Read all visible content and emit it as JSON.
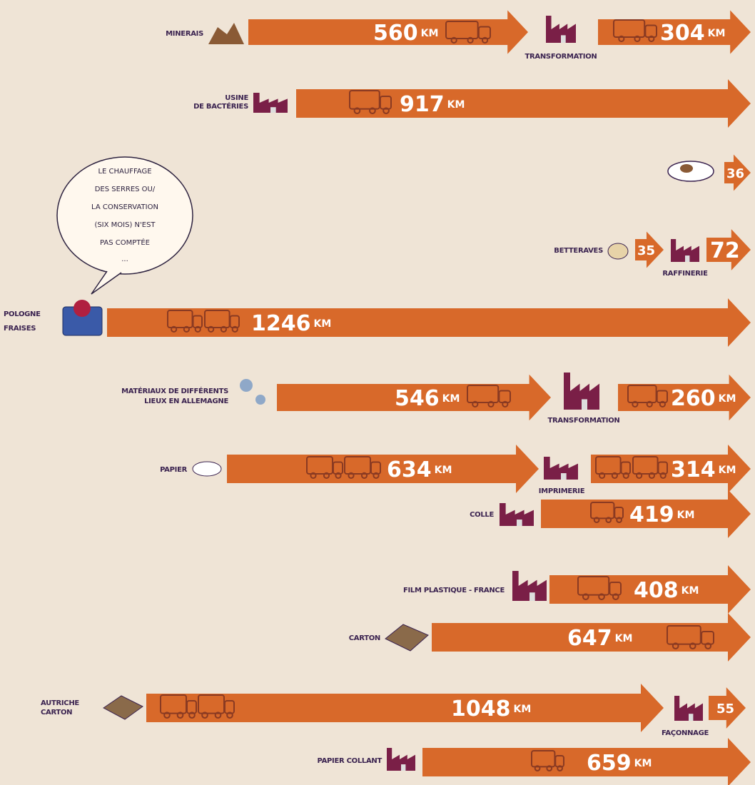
{
  "rows": [
    {
      "label": [
        "MINERAIS"
      ],
      "legs": [
        {
          "distance": "560",
          "unit": "KM"
        },
        {
          "distance": "304",
          "unit": "KM"
        }
      ],
      "stop": "TRANSFORMATION"
    },
    {
      "label": [
        "USINE",
        "DE BACTÉRIES"
      ],
      "legs": [
        {
          "distance": "917",
          "unit": "KM"
        }
      ]
    },
    {
      "legs": [
        {
          "distance": "36"
        }
      ]
    },
    {
      "label": [
        "BETTERAVES"
      ],
      "legs": [
        {
          "distance": "35"
        },
        {
          "distance": "72"
        }
      ],
      "stop": "RAFFINERIE"
    },
    {
      "label": [
        "POLOGNE",
        "FRAISES"
      ],
      "legs": [
        {
          "distance": "1246",
          "unit": "KM"
        }
      ]
    },
    {
      "label": [
        "MATÉRIAUX DE DIFFÉRENTS",
        "LIEUX EN ALLEMAGNE"
      ],
      "legs": [
        {
          "distance": "546",
          "unit": "KM"
        },
        {
          "distance": "260",
          "unit": "KM"
        }
      ],
      "stop": "TRANSFORMATION"
    },
    {
      "label": [
        "PAPIER"
      ],
      "legs": [
        {
          "distance": "634",
          "unit": "KM"
        },
        {
          "distance": "314",
          "unit": "KM"
        }
      ],
      "stop": "IMPRIMERIE"
    },
    {
      "label": [
        "COLLE"
      ],
      "legs": [
        {
          "distance": "419",
          "unit": "KM"
        }
      ]
    },
    {
      "label": [
        "FILM PLASTIQUE - FRANCE"
      ],
      "legs": [
        {
          "distance": "408",
          "unit": "KM"
        }
      ]
    },
    {
      "label": [
        "CARTON"
      ],
      "legs": [
        {
          "distance": "647",
          "unit": "KM"
        }
      ]
    },
    {
      "label": [
        "AUTRICHE",
        "CARTON"
      ],
      "legs": [
        {
          "distance": "1048",
          "unit": "KM"
        },
        {
          "distance": "55"
        }
      ],
      "stop": "FAÇONNAGE"
    },
    {
      "label": [
        "PAPIER COLLANT"
      ],
      "legs": [
        {
          "distance": "659",
          "unit": "KM"
        }
      ]
    }
  ],
  "note": [
    "LE CHAUFFAGE",
    "DES SERRES OU/",
    "LA CONSERVATION",
    "(SIX MOIS) N'EST",
    "PAS COMPTÉE",
    "..."
  ]
}
